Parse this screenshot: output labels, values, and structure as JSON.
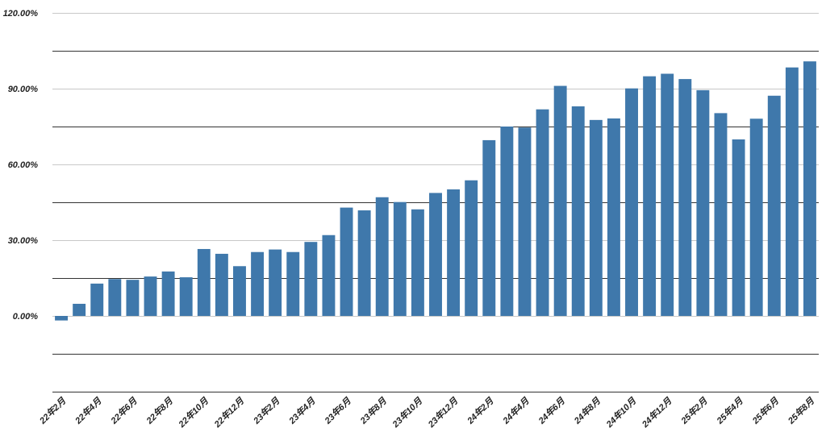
{
  "chart_data": {
    "type": "bar",
    "categories": [
      "22年2月",
      "22年3月",
      "22年4月",
      "22年5月",
      "22年6月",
      "22年7月",
      "22年8月",
      "22年9月",
      "22年10月",
      "22年11月",
      "22年12月",
      "23年1月",
      "23年2月",
      "23年3月",
      "23年4月",
      "23年5月",
      "23年6月",
      "23年7月",
      "23年8月",
      "23年9月",
      "23年10月",
      "23年11月",
      "23年12月",
      "24年1月",
      "24年2月",
      "24年3月",
      "24年4月",
      "24年5月",
      "24年6月",
      "24年7月",
      "24年8月",
      "24年9月",
      "24年10月",
      "24年11月",
      "24年12月",
      "25年1月",
      "25年2月",
      "25年3月",
      "25年4月",
      "25年5月",
      "25年6月",
      "25年7月",
      "25年8月"
    ],
    "values": [
      -1.8,
      4.8,
      12.8,
      14.6,
      14.3,
      15.6,
      17.6,
      15.3,
      26.5,
      24.6,
      19.7,
      25.3,
      26.3,
      25.3,
      29.3,
      32.0,
      42.9,
      41.8,
      47.0,
      45.1,
      42.2,
      48.7,
      50.1,
      53.7,
      69.6,
      75.0,
      74.6,
      81.8,
      91.1,
      83.0,
      77.6,
      78.2,
      90.1,
      94.9,
      95.9,
      93.8,
      89.4,
      80.3,
      69.9,
      78.1,
      87.2,
      98.4,
      100.8
    ],
    "tick_labels": [
      "22年2月",
      "22年4月",
      "22年6月",
      "22年8月",
      "22年10月",
      "22年12月",
      "23年2月",
      "23年4月",
      "23年6月",
      "23年8月",
      "23年10月",
      "23年12月",
      "24年2月",
      "24年4月",
      "24年6月",
      "24年8月",
      "24年10月",
      "24年12月",
      "25年2月",
      "25年4月",
      "25年6月",
      "25年8月"
    ],
    "y_ticks": [
      0,
      30,
      60,
      90,
      120
    ],
    "y_tick_labels": [
      "0.00%",
      "30.00%",
      "60.00%",
      "90.00%",
      "120.00%"
    ],
    "ylim": [
      -30,
      120
    ],
    "title": "",
    "xlabel": "",
    "ylabel": "",
    "grid": true,
    "bar_color": "#3f78ab"
  }
}
